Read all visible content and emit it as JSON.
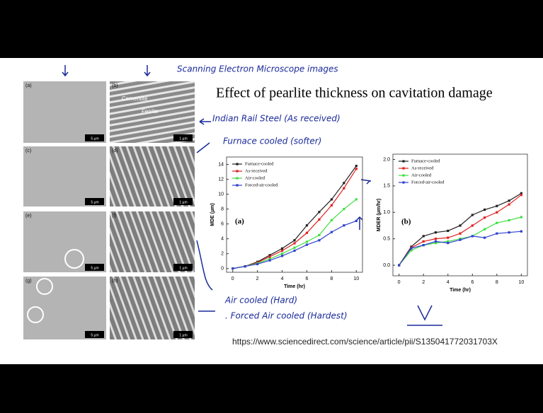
{
  "slide": {
    "title": "Effect of pearlite thickness on cavitation damage",
    "notes": [
      "Scanning Electron Microscope images",
      "Indian Rail Steel (As received)",
      "Furnace cooled (softer)",
      "Air cooled (Hard)",
      ". Forced Air cooled (Hardest)"
    ],
    "source": "https://www.sciencedirect.com/science/article/pii/S135041772031703X",
    "panels": [
      {
        "label": "(a)",
        "scale": "5 µm"
      },
      {
        "label": "(b)",
        "scale": "1 µm"
      },
      {
        "label": "(c)",
        "scale": "5 µm"
      },
      {
        "label": "(d)",
        "scale": "1 µm"
      },
      {
        "label": "(e)",
        "scale": "5 µm"
      },
      {
        "label": "(f)",
        "scale": "1 µm"
      },
      {
        "label": "(g)",
        "scale": "5 µm"
      },
      {
        "label": "(h)",
        "scale": "1 µm"
      }
    ],
    "phases": [
      "Cementite",
      "Ferrite"
    ]
  },
  "chart_data": [
    {
      "type": "line",
      "annotation": "(a)",
      "x_label": "Time (hr)",
      "y_label": "MDE (µm)",
      "x": [
        0,
        1,
        2,
        3,
        4,
        5,
        6,
        7,
        8,
        9,
        10
      ],
      "xlim": [
        -0.5,
        10.5
      ],
      "xticks": [
        0,
        2,
        4,
        6,
        8,
        10
      ],
      "ylim": [
        -0.5,
        15
      ],
      "yticks": [
        0,
        2,
        4,
        6,
        8,
        10,
        12,
        14
      ],
      "series": [
        {
          "name": "Furnace-cooled",
          "color": "#222222",
          "values": [
            0,
            0.3,
            0.9,
            1.8,
            2.7,
            3.8,
            5.8,
            7.6,
            9.3,
            11.5,
            13.8
          ]
        },
        {
          "name": "As-received",
          "color": "#e02020",
          "values": [
            0,
            0.3,
            0.8,
            1.6,
            2.4,
            3.4,
            4.8,
            6.6,
            8.5,
            10.8,
            13.4
          ]
        },
        {
          "name": "Air-cooled",
          "color": "#40e040",
          "values": [
            0,
            0.3,
            0.7,
            1.3,
            2,
            2.8,
            3.6,
            4.5,
            6.5,
            8,
            9.3
          ]
        },
        {
          "name": "Forced-air-cooled",
          "color": "#3040d0",
          "values": [
            0,
            0.3,
            0.6,
            1.1,
            1.7,
            2.4,
            3.2,
            3.8,
            4.9,
            5.8,
            6.4
          ]
        }
      ]
    },
    {
      "type": "line",
      "annotation": "(b)",
      "x_label": "Time (hr)",
      "y_label": "MDER (µm/hr)",
      "x": [
        0,
        1,
        2,
        3,
        4,
        5,
        6,
        7,
        8,
        9,
        10
      ],
      "xlim": [
        -0.5,
        10.5
      ],
      "xticks": [
        0,
        2,
        4,
        6,
        8,
        10
      ],
      "ylim": [
        -0.2,
        2.1
      ],
      "yticks": [
        {
          "value": 0,
          "label": "0.0"
        },
        {
          "value": 0.5,
          "label": "0.5"
        },
        {
          "value": 1,
          "label": "1.0"
        },
        {
          "value": 1.5,
          "label": "1.5"
        },
        {
          "value": 2,
          "label": "2.0"
        }
      ],
      "series": [
        {
          "name": "Furnace-cooled",
          "color": "#222222",
          "values": [
            0,
            0.35,
            0.55,
            0.62,
            0.65,
            0.75,
            0.95,
            1.05,
            1.12,
            1.22,
            1.36
          ]
        },
        {
          "name": "As-received",
          "color": "#e02020",
          "values": [
            0,
            0.33,
            0.45,
            0.5,
            0.52,
            0.6,
            0.75,
            0.9,
            1.0,
            1.15,
            1.33
          ]
        },
        {
          "name": "Air-cooled",
          "color": "#40e040",
          "values": [
            0,
            0.28,
            0.38,
            0.42,
            0.45,
            0.5,
            0.55,
            0.68,
            0.8,
            0.85,
            0.91
          ]
        },
        {
          "name": "Forced-air-cooled",
          "color": "#3040d0",
          "values": [
            0,
            0.32,
            0.38,
            0.45,
            0.42,
            0.48,
            0.55,
            0.52,
            0.6,
            0.62,
            0.64
          ]
        }
      ]
    }
  ]
}
